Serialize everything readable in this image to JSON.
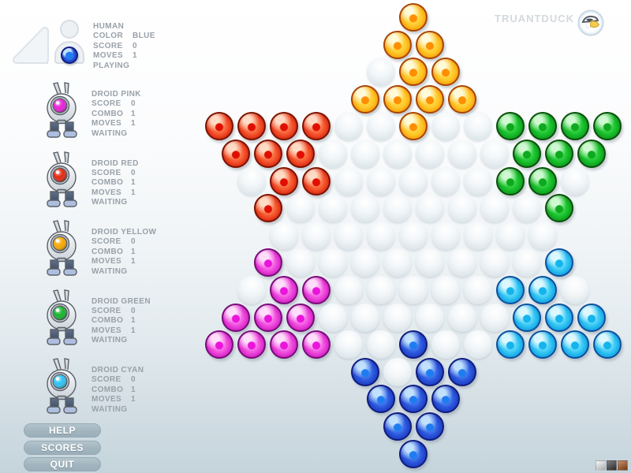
{
  "brand": {
    "label": "TRUANTDUCK"
  },
  "players": [
    {
      "name": "HUMAN",
      "stats": [
        {
          "label": "COLOR",
          "value": "BLUE"
        },
        {
          "label": "SCORE",
          "value": "0"
        },
        {
          "label": "MOVES",
          "value": "1"
        }
      ],
      "status": "PLAYING",
      "icon": "human",
      "marble": "B",
      "eye": "#2a55dd"
    },
    {
      "name": "DROID PINK",
      "stats": [
        {
          "label": "SCORE",
          "value": "0"
        },
        {
          "label": "COMBO",
          "value": "1"
        },
        {
          "label": "MOVES",
          "value": "1"
        }
      ],
      "status": "WAITING",
      "icon": "droid",
      "marble": "M",
      "eye": "#e81ed8"
    },
    {
      "name": "DROID RED",
      "stats": [
        {
          "label": "SCORE",
          "value": "0"
        },
        {
          "label": "COMBO",
          "value": "1"
        },
        {
          "label": "MOVES",
          "value": "1"
        }
      ],
      "status": "WAITING",
      "icon": "droid",
      "marble": "R",
      "eye": "#e22810"
    },
    {
      "name": "DROID YELLOW",
      "stats": [
        {
          "label": "SCORE",
          "value": "0"
        },
        {
          "label": "COMBO",
          "value": "1"
        },
        {
          "label": "MOVES",
          "value": "1"
        }
      ],
      "status": "WAITING",
      "icon": "droid",
      "marble": "Y",
      "eye": "#f5a800"
    },
    {
      "name": "DROID GREEN",
      "stats": [
        {
          "label": "SCORE",
          "value": "0"
        },
        {
          "label": "COMBO",
          "value": "1"
        },
        {
          "label": "MOVES",
          "value": "1"
        }
      ],
      "status": "WAITING",
      "icon": "droid",
      "marble": "G",
      "eye": "#17b42b"
    },
    {
      "name": "DROID CYAN",
      "stats": [
        {
          "label": "SCORE",
          "value": "0"
        },
        {
          "label": "COMBO",
          "value": "1"
        },
        {
          "label": "MOVES",
          "value": "1"
        }
      ],
      "status": "WAITING",
      "icon": "droid",
      "marble": "C",
      "eye": "#2cc3f2"
    }
  ],
  "menu_buttons": [
    {
      "label": "HELP"
    },
    {
      "label": "SCORES"
    },
    {
      "label": "QUIT"
    }
  ],
  "theme_swatches": [
    {
      "name": "light",
      "color": "#f2f5f6"
    },
    {
      "name": "dark",
      "color": "#3c3c3c"
    },
    {
      "name": "rust",
      "color": "#a6521e"
    }
  ],
  "board": {
    "rows": [
      "Y",
      "YY",
      "EYY",
      "YYYY",
      "RRRREEYEEGGGG",
      "RRREEEEEEGGG",
      "ERREEEEEGGE",
      "REEEEEEEEG",
      "EEEEEEEEE",
      "MEEEEEEEEC",
      "EMMEEEEECCE",
      "MMMEEEEEECCC",
      "MMMMEEBEECCCC",
      "BEBB",
      "BBB",
      "BB",
      "B"
    ],
    "palette": {
      "Y": {
        "name": "yellow",
        "hex": "#ffc01e"
      },
      "R": {
        "name": "red",
        "hex": "#e63214"
      },
      "G": {
        "name": "green",
        "hex": "#17bd2b"
      },
      "M": {
        "name": "magenta",
        "hex": "#ee44dc"
      },
      "C": {
        "name": "cyan",
        "hex": "#2cc3f2"
      },
      "B": {
        "name": "blue",
        "hex": "#2a55dd"
      },
      "E": {
        "name": "empty-hole",
        "hex": "#e3eaee"
      }
    }
  }
}
